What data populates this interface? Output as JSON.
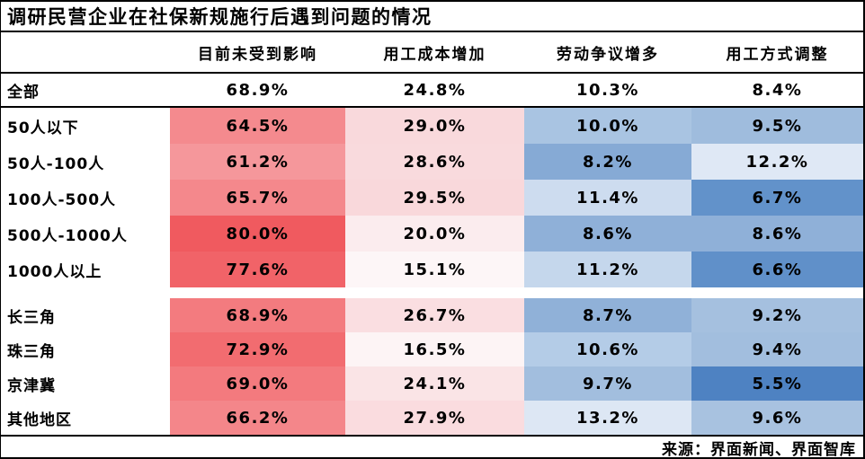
{
  "title": "调研民营企业在社保新规施行后遇到问题的情况",
  "source": "来源：界面新闻、界面智库",
  "chart_data": {
    "type": "heatmap",
    "title": "调研民营企业在社保新规施行后遇到问题的情况",
    "columns": [
      "目前未受到影响",
      "用工成本增加",
      "劳动争议增多",
      "用工方式调整"
    ],
    "value_suffix": "%",
    "legend_position": "none",
    "palette": {
      "high_value": "#f05a5f",
      "mid_value": "#ffffff",
      "low_value": "#4e82c2"
    },
    "summary_row": {
      "label": "全部",
      "values": [
        68.9,
        24.8,
        10.3,
        8.4
      ],
      "colors": [
        "#ffffff",
        "#ffffff",
        "#ffffff",
        "#ffffff"
      ]
    },
    "groups": [
      {
        "name": "by-company-size",
        "rows": [
          {
            "label": "50人以下",
            "values": [
              64.5,
              29.0,
              10.0,
              9.5
            ],
            "colors": [
              "#f48a8e",
              "#f9d9dc",
              "#a9c4e2",
              "#9fbcdd"
            ]
          },
          {
            "label": "50人-100人",
            "values": [
              61.2,
              28.6,
              8.2,
              12.2
            ],
            "colors": [
              "#f5979b",
              "#f9dadd",
              "#86aad5",
              "#dfe8f5"
            ]
          },
          {
            "label": "100人-500人",
            "values": [
              65.7,
              29.5,
              11.4,
              6.7
            ],
            "colors": [
              "#f4888c",
              "#f9d8db",
              "#cddcef",
              "#6292ca"
            ]
          },
          {
            "label": "500人-1000人",
            "values": [
              80.0,
              20.0,
              8.6,
              8.6
            ],
            "colors": [
              "#f05a5f",
              "#fbecee",
              "#8fb0d8",
              "#8fb0d8"
            ]
          },
          {
            "label": "1000人以上",
            "values": [
              77.6,
              15.1,
              11.2,
              6.6
            ],
            "colors": [
              "#f16368",
              "#fdf6f7",
              "#c5d7ec",
              "#6090c9"
            ]
          }
        ]
      },
      {
        "name": "by-region",
        "rows": [
          {
            "label": "长三角",
            "values": [
              68.9,
              26.7,
              8.7,
              9.2
            ],
            "colors": [
              "#f37b7f",
              "#fadee1",
              "#90b1d8",
              "#a5c0df"
            ]
          },
          {
            "label": "珠三角",
            "values": [
              72.9,
              16.5,
              10.6,
              9.4
            ],
            "colors": [
              "#f26c70",
              "#fdf4f5",
              "#b4cce7",
              "#a2bede"
            ]
          },
          {
            "label": "京津冀",
            "values": [
              69.0,
              24.1,
              9.7,
              5.5
            ],
            "colors": [
              "#f37a7e",
              "#fae4e6",
              "#a2bede",
              "#4e82c2"
            ]
          },
          {
            "label": "其他地区",
            "values": [
              66.2,
              27.9,
              13.2,
              9.6
            ],
            "colors": [
              "#f4868a",
              "#fadcdf",
              "#dde7f4",
              "#a8c2e0"
            ]
          }
        ]
      }
    ]
  }
}
